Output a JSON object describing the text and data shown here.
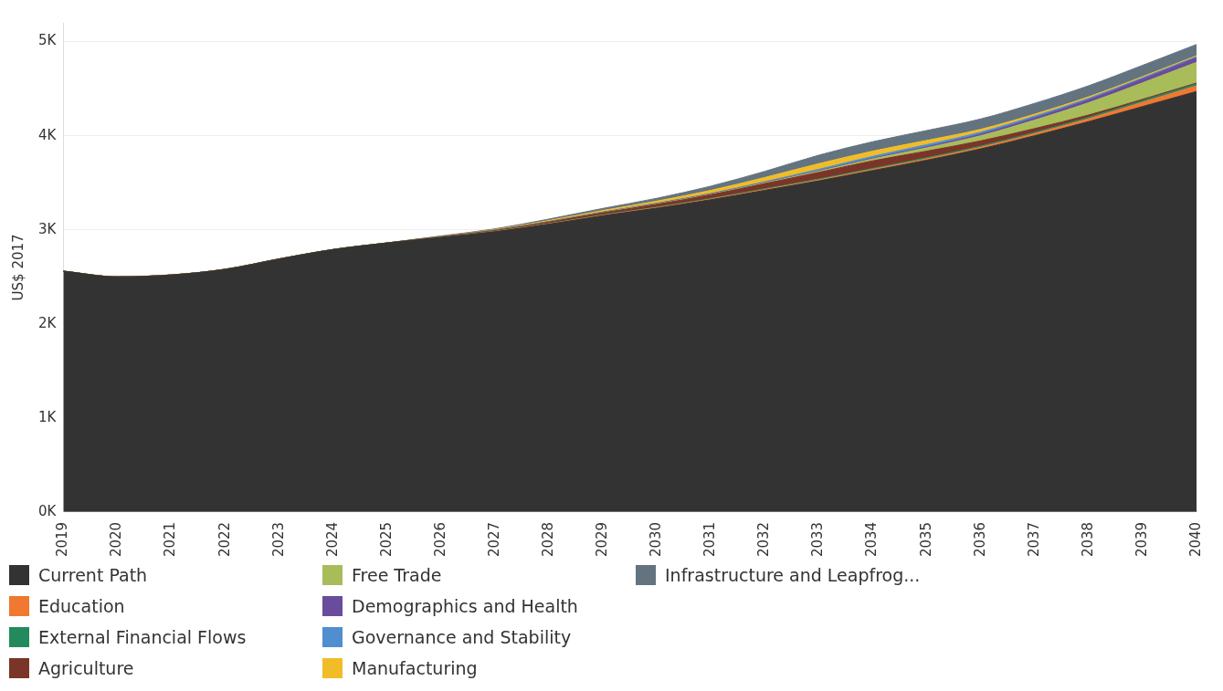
{
  "chart_data": {
    "type": "area",
    "stacked": true,
    "ylabel": "US$ 2017",
    "categories": [
      "2019",
      "2020",
      "2021",
      "2022",
      "2023",
      "2024",
      "2025",
      "2026",
      "2027",
      "2028",
      "2029",
      "2030",
      "2031",
      "2032",
      "2033",
      "2034",
      "2035",
      "2036",
      "2037",
      "2038",
      "2039",
      "2040"
    ],
    "ylim": [
      0,
      5200
    ],
    "yticks": [
      {
        "value": 0,
        "label": "0K"
      },
      {
        "value": 1000,
        "label": "1K"
      },
      {
        "value": 2000,
        "label": "2K"
      },
      {
        "value": 3000,
        "label": "3K"
      },
      {
        "value": 4000,
        "label": "4K"
      },
      {
        "value": 5000,
        "label": "5K"
      }
    ],
    "grid": "y",
    "legend": "bottom",
    "series": [
      {
        "name": "Current Path",
        "color": "#333333",
        "values": [
          2560,
          2500,
          2520,
          2580,
          2690,
          2790,
          2860,
          2920,
          2980,
          3060,
          3150,
          3230,
          3320,
          3420,
          3520,
          3630,
          3740,
          3860,
          4000,
          4150,
          4310,
          4470
        ]
      },
      {
        "name": "Education",
        "color": "#f07830",
        "values": [
          0,
          0,
          0,
          0,
          0,
          0,
          0,
          2,
          3,
          4,
          5,
          6,
          7,
          8,
          10,
          12,
          14,
          17,
          22,
          30,
          45,
          60
        ]
      },
      {
        "name": "External Financial Flows",
        "color": "#238a5e",
        "values": [
          0,
          0,
          0,
          0,
          0,
          0,
          0,
          1,
          2,
          3,
          4,
          5,
          6,
          8,
          10,
          11,
          12,
          13,
          14,
          15,
          17,
          20
        ]
      },
      {
        "name": "Agriculture",
        "color": "#7a3528",
        "values": [
          0,
          0,
          0,
          0,
          0,
          0,
          0,
          3,
          8,
          15,
          22,
          30,
          40,
          55,
          70,
          80,
          70,
          55,
          40,
          25,
          15,
          10
        ]
      },
      {
        "name": "Free Trade",
        "color": "#a8bc5a",
        "values": [
          0,
          0,
          0,
          0,
          0,
          0,
          0,
          1,
          2,
          3,
          4,
          5,
          6,
          8,
          12,
          20,
          35,
          55,
          90,
          130,
          175,
          220
        ]
      },
      {
        "name": "Demographics and Health",
        "color": "#6a4c9c",
        "values": [
          0,
          0,
          0,
          0,
          0,
          0,
          0,
          1,
          1,
          2,
          2,
          3,
          3,
          4,
          6,
          8,
          12,
          18,
          25,
          33,
          42,
          50
        ]
      },
      {
        "name": "Governance and Stability",
        "color": "#4f8fd0",
        "values": [
          0,
          0,
          0,
          0,
          0,
          0,
          0,
          1,
          1,
          2,
          3,
          4,
          5,
          8,
          15,
          20,
          22,
          20,
          18,
          15,
          12,
          10
        ]
      },
      {
        "name": "Manufacturing",
        "color": "#f0bc28",
        "values": [
          0,
          0,
          0,
          0,
          0,
          0,
          0,
          2,
          5,
          10,
          15,
          22,
          32,
          45,
          60,
          55,
          45,
          30,
          20,
          15,
          12,
          10
        ]
      },
      {
        "name": "Infrastructure and Leapfrog...",
        "color": "#637480",
        "values": [
          0,
          0,
          0,
          0,
          0,
          0,
          0,
          3,
          8,
          15,
          22,
          30,
          45,
          65,
          90,
          100,
          105,
          110,
          115,
          118,
          120,
          120
        ]
      }
    ]
  }
}
